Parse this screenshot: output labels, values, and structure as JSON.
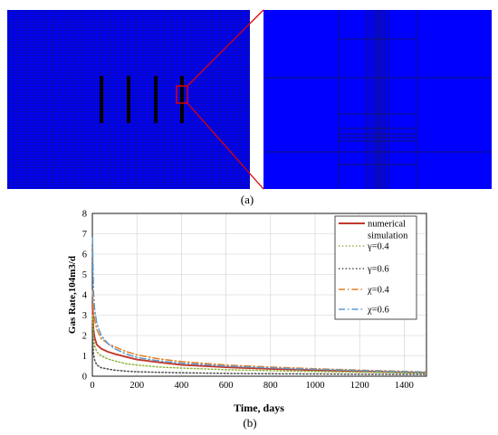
{
  "panel_a": {
    "label": "(a)",
    "mesh_color": "#0000ff",
    "grid_line_color": "#1b1b1b",
    "zoom_box_color": "#e00000",
    "fracture_color": "#000000"
  },
  "panel_b": {
    "label": "(b)"
  },
  "chart_data": {
    "type": "line",
    "title": "",
    "xlabel": "Time, days",
    "ylabel": "Gas Rate,104m3/d",
    "xlim": [
      0,
      1500
    ],
    "ylim": [
      0,
      8
    ],
    "xticks": [
      0,
      200,
      400,
      600,
      800,
      1000,
      1200,
      1400
    ],
    "yticks": [
      0,
      1,
      2,
      3,
      4,
      5,
      6,
      7,
      8
    ],
    "grid": true,
    "legend_position": "top-right",
    "series": [
      {
        "name": "numerical simulation",
        "color": "#c0392b",
        "dash": "solid",
        "x": [
          1,
          5,
          10,
          20,
          40,
          70,
          100,
          150,
          200,
          300,
          400,
          600,
          800,
          1000,
          1200,
          1400,
          1500
        ],
        "y": [
          3.5,
          2.3,
          1.9,
          1.55,
          1.35,
          1.2,
          1.1,
          0.95,
          0.82,
          0.68,
          0.56,
          0.44,
          0.36,
          0.3,
          0.24,
          0.19,
          0.17
        ]
      },
      {
        "name": "γ=0.4",
        "color": "#8db33a",
        "dash": "dot",
        "x": [
          1,
          5,
          10,
          20,
          40,
          70,
          100,
          150,
          200,
          300,
          400,
          600,
          800,
          1000,
          1200,
          1400,
          1500
        ],
        "y": [
          3.0,
          1.9,
          1.5,
          1.2,
          1.0,
          0.85,
          0.75,
          0.62,
          0.55,
          0.45,
          0.4,
          0.32,
          0.27,
          0.23,
          0.2,
          0.17,
          0.16
        ]
      },
      {
        "name": "γ=0.6",
        "color": "#4a4a4a",
        "dash": "dot",
        "x": [
          1,
          5,
          10,
          20,
          40,
          70,
          100,
          150,
          200,
          300,
          400,
          600,
          800,
          1000,
          1200,
          1400,
          1500
        ],
        "y": [
          2.0,
          1.1,
          0.8,
          0.55,
          0.42,
          0.35,
          0.3,
          0.25,
          0.22,
          0.19,
          0.17,
          0.14,
          0.12,
          0.11,
          0.1,
          0.09,
          0.09
        ]
      },
      {
        "name": "χ=0.4",
        "color": "#e67e22",
        "dash": "dashdot",
        "x": [
          1,
          5,
          10,
          20,
          40,
          70,
          100,
          150,
          200,
          300,
          400,
          600,
          800,
          1000,
          1200,
          1400,
          1500
        ],
        "y": [
          4.2,
          3.2,
          2.8,
          2.3,
          1.85,
          1.6,
          1.45,
          1.22,
          1.05,
          0.85,
          0.72,
          0.55,
          0.45,
          0.37,
          0.3,
          0.24,
          0.21
        ]
      },
      {
        "name": "χ=0.6",
        "color": "#5b9bd5",
        "dash": "dashdot",
        "x": [
          1,
          5,
          10,
          20,
          40,
          70,
          100,
          150,
          200,
          300,
          400,
          600,
          800,
          1000,
          1200,
          1400,
          1500
        ],
        "y": [
          6.8,
          4.2,
          3.3,
          2.6,
          2.0,
          1.6,
          1.35,
          1.1,
          0.92,
          0.75,
          0.64,
          0.5,
          0.41,
          0.34,
          0.28,
          0.22,
          0.2
        ]
      }
    ]
  }
}
